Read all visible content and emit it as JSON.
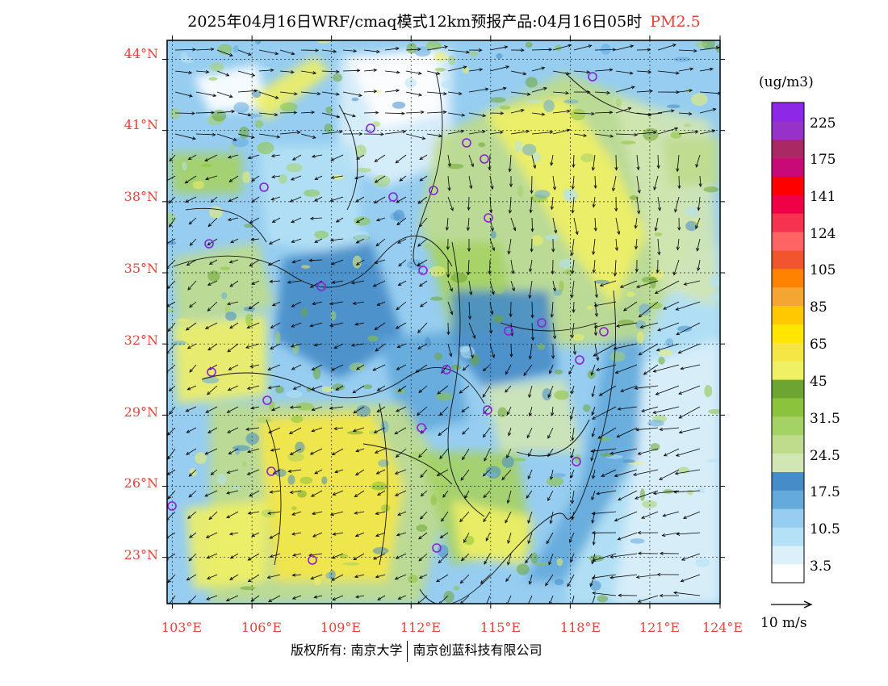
{
  "title": {
    "main": "2025年04月16日WRF/cmaq模式12km预报产品:04月16日05时",
    "pollutant": "PM2.5"
  },
  "map": {
    "lat_labels": [
      "44°N",
      "41°N",
      "38°N",
      "35°N",
      "32°N",
      "29°N",
      "26°N",
      "23°N"
    ],
    "lon_labels": [
      "103°E",
      "106°E",
      "109°E",
      "112°E",
      "115°E",
      "118°E",
      "121°E",
      "124°E"
    ],
    "lat_range": [
      21,
      44.5
    ],
    "lon_range": [
      103,
      124
    ]
  },
  "colorbar": {
    "unit": "(ug/m3)",
    "colors": [
      "#ffffff",
      "#dcf0fa",
      "#b4e1f5",
      "#96cdf0",
      "#64aadc",
      "#468cc8",
      "#d2e6b4",
      "#bedc8c",
      "#a5d264",
      "#8cc33c",
      "#6ea532",
      "#f0f064",
      "#f5e646",
      "#ffe600",
      "#ffc800",
      "#f5a532",
      "#ff8200",
      "#f0552d",
      "#ff6464",
      "#f53250",
      "#f00046",
      "#ff0000",
      "#c80a78",
      "#aa2864",
      "#9632c8",
      "#8c28e6"
    ],
    "labels": [
      "3.5",
      "10.5",
      "17.5",
      "24.5",
      "31.5",
      "45",
      "65",
      "85",
      "105",
      "124",
      "141",
      "175",
      "225"
    ]
  },
  "wind_scale": {
    "label": "10 m/s"
  },
  "footer": {
    "copyright_left": "版权所有: 南京大学",
    "copyright_right": "南京创蓝科技有限公司"
  }
}
